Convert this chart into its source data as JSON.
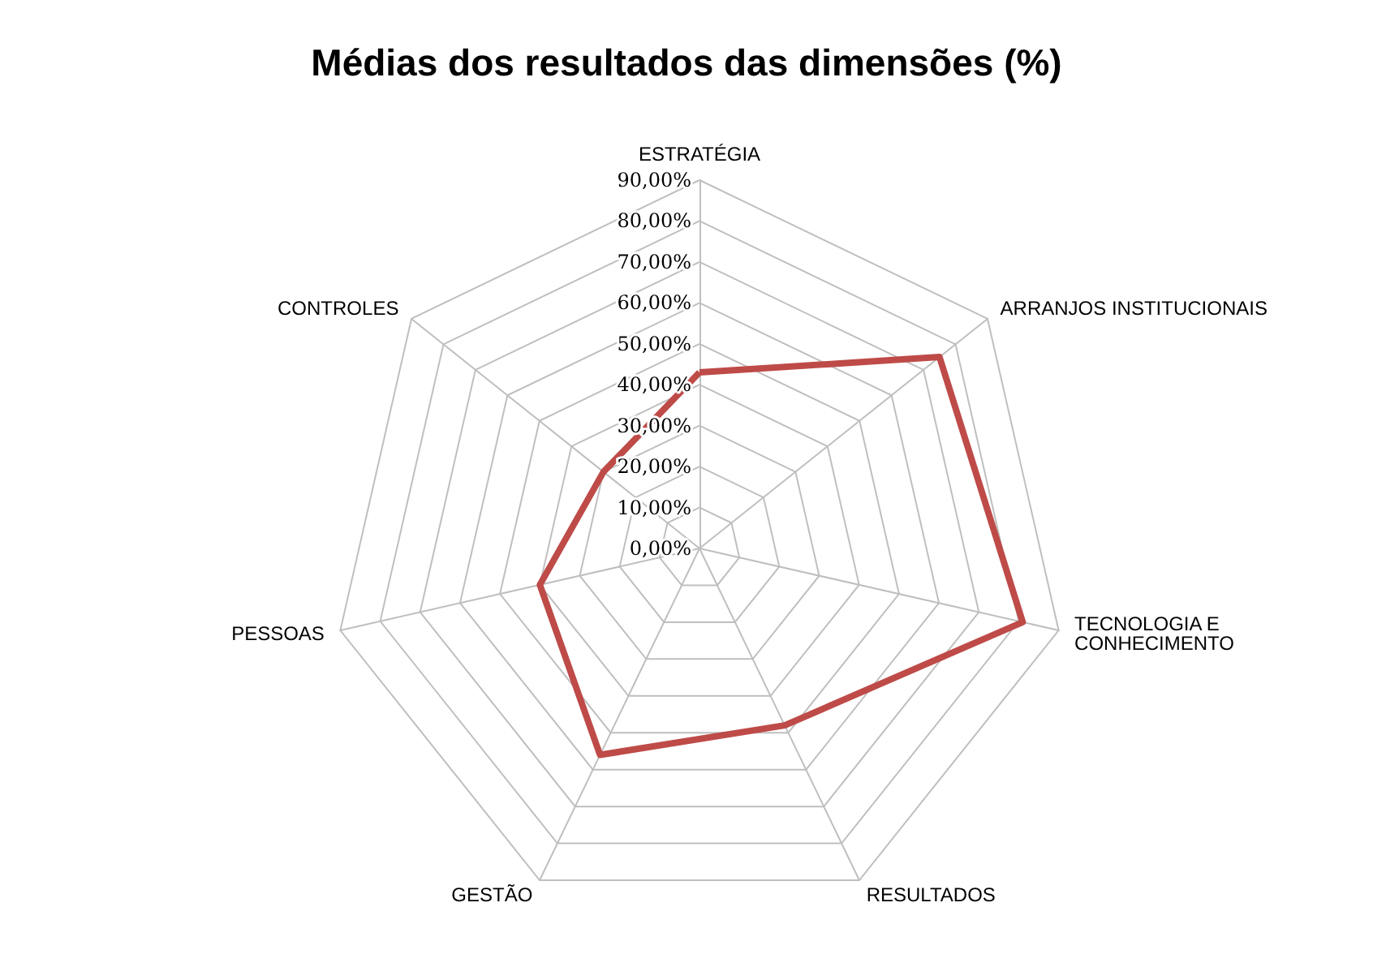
{
  "chart_data": {
    "type": "radar",
    "title": "Médias dos resultados das dimensões (%)",
    "categories": [
      "ESTRATÉGIA",
      "ARRANJOS INSTITUCIONAIS",
      "TECNOLOGIA E\nCONHECIMENTO",
      "RESULTADOS",
      "GESTÃO",
      "PESSOAS",
      "CONTROLES"
    ],
    "series": [
      {
        "color": "#be4b48",
        "values": [
          43,
          75,
          81,
          48,
          56,
          40,
          30
        ]
      }
    ],
    "ylim": [
      0,
      90
    ],
    "yticks": [
      {
        "value": 0,
        "label": "0,00%"
      },
      {
        "value": 10,
        "label": "10,00%"
      },
      {
        "value": 20,
        "label": "20,00%"
      },
      {
        "value": 30,
        "label": "30,00%"
      },
      {
        "value": 40,
        "label": "40,00%"
      },
      {
        "value": 50,
        "label": "50,00%"
      },
      {
        "value": 60,
        "label": "60,00%"
      },
      {
        "value": 70,
        "label": "70,00%"
      },
      {
        "value": 80,
        "label": "80,00%"
      },
      {
        "value": 90,
        "label": "90,00%"
      }
    ],
    "grid": true,
    "marker": "none",
    "line_style": "solid"
  }
}
